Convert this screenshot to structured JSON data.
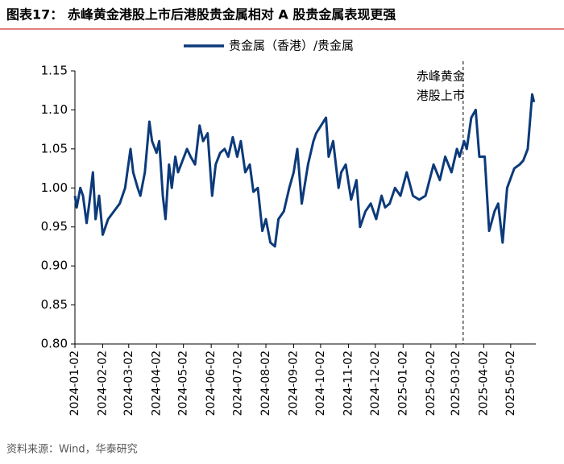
{
  "chart_data": {
    "type": "line",
    "title": "图表17：  赤峰黄金港股上市后港股贵金属相对 A 股贵金属表现更强",
    "source": "资料来源：Wind，华泰研究",
    "annotation": {
      "x": "2025-03-10",
      "lines": [
        "赤峰黄金",
        "港股上市"
      ]
    },
    "legend": "top",
    "xlim": [
      "2024-01-02",
      "2025-05-30"
    ],
    "xticks": [
      "2024-01-02",
      "2024-02-02",
      "2024-03-02",
      "2024-04-02",
      "2024-05-02",
      "2024-06-02",
      "2024-07-02",
      "2024-08-02",
      "2024-09-02",
      "2024-10-02",
      "2024-11-02",
      "2024-12-02",
      "2025-01-02",
      "2025-02-02",
      "2025-03-02",
      "2025-04-02",
      "2025-05-02"
    ],
    "ylim": [
      0.8,
      1.15
    ],
    "yticks": [
      {
        "value": 0.8,
        "label": "0.80"
      },
      {
        "value": 0.85,
        "label": "0.85"
      },
      {
        "value": 0.9,
        "label": "0.90"
      },
      {
        "value": 0.95,
        "label": "0.95"
      },
      {
        "value": 1.0,
        "label": "1.00"
      },
      {
        "value": 1.05,
        "label": "1.05"
      },
      {
        "value": 1.1,
        "label": "1.10"
      },
      {
        "value": 1.15,
        "label": "1.15"
      }
    ],
    "x": [
      "2024-01-02",
      "2024-01-04",
      "2024-01-08",
      "2024-01-11",
      "2024-01-15",
      "2024-01-18",
      "2024-01-22",
      "2024-01-25",
      "2024-01-29",
      "2024-02-02",
      "2024-02-08",
      "2024-02-21",
      "2024-02-27",
      "2024-03-04",
      "2024-03-07",
      "2024-03-12",
      "2024-03-15",
      "2024-03-20",
      "2024-03-25",
      "2024-03-28",
      "2024-04-02",
      "2024-04-05",
      "2024-04-09",
      "2024-04-12",
      "2024-04-16",
      "2024-04-19",
      "2024-04-23",
      "2024-04-26",
      "2024-05-06",
      "2024-05-10",
      "2024-05-15",
      "2024-05-20",
      "2024-05-24",
      "2024-05-29",
      "2024-06-03",
      "2024-06-07",
      "2024-06-12",
      "2024-06-17",
      "2024-06-21",
      "2024-06-26",
      "2024-07-01",
      "2024-07-05",
      "2024-07-10",
      "2024-07-15",
      "2024-07-19",
      "2024-07-24",
      "2024-07-29",
      "2024-08-02",
      "2024-08-07",
      "2024-08-12",
      "2024-08-16",
      "2024-08-22",
      "2024-08-28",
      "2024-09-02",
      "2024-09-06",
      "2024-09-11",
      "2024-09-18",
      "2024-09-24",
      "2024-09-27",
      "2024-10-08",
      "2024-10-11",
      "2024-10-16",
      "2024-10-22",
      "2024-10-25",
      "2024-10-30",
      "2024-11-05",
      "2024-11-11",
      "2024-11-15",
      "2024-11-21",
      "2024-11-27",
      "2024-12-03",
      "2024-12-09",
      "2024-12-13",
      "2024-12-18",
      "2024-12-24",
      "2024-12-30",
      "2025-01-06",
      "2025-01-13",
      "2025-01-20",
      "2025-01-27",
      "2025-02-05",
      "2025-02-12",
      "2025-02-18",
      "2025-02-25",
      "2025-03-03",
      "2025-03-06",
      "2025-03-11",
      "2025-03-14",
      "2025-03-19",
      "2025-03-24",
      "2025-03-28",
      "2025-04-03",
      "2025-04-08",
      "2025-04-14",
      "2025-04-18",
      "2025-04-23",
      "2025-04-28",
      "2025-05-06",
      "2025-05-12",
      "2025-05-16",
      "2025-05-21",
      "2025-05-26",
      "2025-05-28"
    ],
    "series": [
      {
        "name": "贵金属（香港）/贵金属",
        "color": "#0c3a7a",
        "values": [
          0.99,
          0.975,
          1.0,
          0.99,
          0.955,
          0.98,
          1.02,
          0.96,
          0.99,
          0.94,
          0.96,
          0.98,
          1.0,
          1.05,
          1.02,
          1.0,
          0.99,
          1.02,
          1.085,
          1.06,
          1.045,
          1.06,
          0.99,
          0.96,
          1.03,
          1.0,
          1.04,
          1.02,
          1.05,
          1.04,
          1.03,
          1.08,
          1.06,
          1.07,
          0.99,
          1.03,
          1.045,
          1.05,
          1.04,
          1.065,
          1.04,
          1.06,
          1.02,
          1.03,
          0.995,
          1.0,
          0.945,
          0.96,
          0.93,
          0.925,
          0.96,
          0.97,
          1.0,
          1.02,
          1.05,
          0.98,
          1.03,
          1.06,
          1.07,
          1.09,
          1.04,
          1.06,
          1.0,
          1.02,
          1.03,
          0.985,
          1.01,
          0.95,
          0.97,
          0.98,
          0.96,
          0.99,
          0.975,
          0.98,
          1.0,
          0.99,
          1.02,
          0.99,
          0.985,
          0.99,
          1.03,
          1.01,
          1.04,
          1.02,
          1.05,
          1.04,
          1.06,
          1.05,
          1.09,
          1.1,
          1.04,
          1.04,
          0.945,
          0.97,
          0.98,
          0.93,
          1.0,
          1.025,
          1.03,
          1.035,
          1.05,
          1.12,
          1.11
        ]
      }
    ]
  }
}
